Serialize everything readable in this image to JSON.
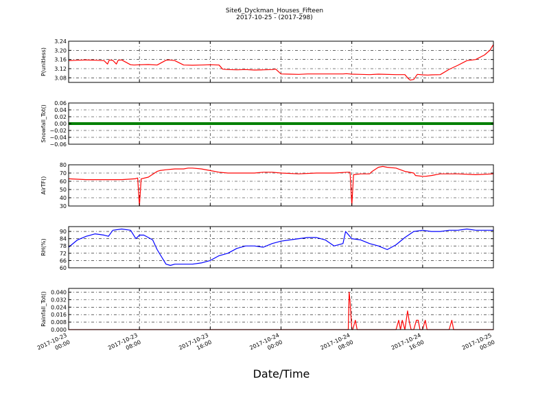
{
  "figure": {
    "title": "Site6_Dyckman_Houses_Fifteen",
    "subtitle": "2017-10-25 - (2017-298)",
    "xlabel": "Date/Time"
  },
  "chart_data": [
    {
      "type": "line",
      "ylabel": "P(unitless)",
      "ylim": [
        3.06,
        3.24
      ],
      "yticks": [
        3.08,
        3.12,
        3.16,
        3.2,
        3.24
      ],
      "ytick_labels": [
        "3.08",
        "3.12",
        "3.16",
        "3.20",
        "3.24"
      ],
      "xlim": [
        0,
        48
      ],
      "grid": true,
      "series": [
        {
          "color": "#ff0000",
          "x": [
            0,
            1,
            2,
            3,
            4,
            4.4,
            4.6,
            5,
            5.4,
            5.6,
            6,
            7,
            7.4,
            8,
            9,
            10,
            11,
            11.4,
            12,
            13,
            14,
            15,
            16,
            17,
            17.4,
            18,
            19,
            20,
            21,
            22,
            23,
            23.4,
            24,
            25,
            26,
            27,
            31,
            31.4,
            32,
            33,
            34,
            35,
            37,
            38,
            38.4,
            38.6,
            39,
            39.4,
            40,
            40.6,
            41,
            42,
            43,
            44,
            45,
            45.4,
            46,
            47,
            47.6,
            48
          ],
          "y": [
            3.155,
            3.157,
            3.158,
            3.157,
            3.155,
            3.14,
            3.158,
            3.156,
            3.14,
            3.157,
            3.158,
            3.137,
            3.136,
            3.137,
            3.138,
            3.136,
            3.157,
            3.158,
            3.155,
            3.136,
            3.135,
            3.136,
            3.137,
            3.136,
            3.118,
            3.116,
            3.115,
            3.116,
            3.114,
            3.115,
            3.116,
            3.118,
            3.097,
            3.096,
            3.095,
            3.097,
            3.097,
            3.098,
            3.096,
            3.095,
            3.094,
            3.096,
            3.094,
            3.094,
            3.076,
            3.07,
            3.073,
            3.095,
            3.093,
            3.092,
            3.093,
            3.094,
            3.117,
            3.135,
            3.155,
            3.157,
            3.16,
            3.18,
            3.2,
            3.225
          ]
        }
      ]
    },
    {
      "type": "line",
      "ylabel": "Snowfall_Tot()",
      "ylim": [
        -0.06,
        0.06
      ],
      "yticks": [
        -0.06,
        -0.04,
        -0.02,
        0.0,
        0.02,
        0.04,
        0.06
      ],
      "ytick_labels": [
        "−0.06",
        "−0.04",
        "−0.02",
        "0.00",
        "0.02",
        "0.04",
        "0.06"
      ],
      "xlim": [
        0,
        48
      ],
      "grid": true,
      "series": [
        {
          "color": "#008000",
          "line_width": 4,
          "x": [
            0,
            48
          ],
          "y": [
            0,
            0
          ]
        }
      ]
    },
    {
      "type": "line",
      "ylabel": "AirTF()",
      "ylim": [
        30,
        80
      ],
      "yticks": [
        30,
        40,
        50,
        60,
        70,
        80
      ],
      "ytick_labels": [
        "30",
        "40",
        "50",
        "60",
        "70",
        "80"
      ],
      "xlim": [
        0,
        48
      ],
      "grid": true,
      "series": [
        {
          "color": "#ff0000",
          "x": [
            0,
            2,
            4,
            6,
            7.5,
            7.8,
            8,
            8.2,
            9,
            10,
            10.3,
            11,
            12,
            13,
            13.5,
            14,
            15,
            16,
            17,
            18,
            19,
            20,
            21,
            22,
            23,
            24,
            26,
            28,
            29,
            30,
            31.5,
            31.8,
            32,
            32.2,
            33,
            34,
            34.3,
            35,
            35.5,
            36,
            37,
            38,
            39,
            39.2,
            40,
            40.3,
            41,
            42,
            44,
            46,
            48
          ],
          "y": [
            63,
            62,
            62,
            62,
            63,
            64,
            30,
            63,
            65,
            72,
            73,
            74,
            75,
            75,
            76,
            76,
            75,
            73,
            71,
            70,
            70,
            70,
            70,
            71,
            71,
            70,
            69,
            70,
            70,
            70,
            71,
            71,
            31,
            68,
            69,
            69,
            72,
            77,
            78,
            77,
            76,
            72,
            70,
            67,
            66,
            66,
            67,
            69,
            69,
            68,
            69
          ]
        }
      ]
    },
    {
      "type": "line",
      "ylabel": "RH(%)",
      "ylim": [
        60,
        94
      ],
      "yticks": [
        60,
        66,
        72,
        78,
        84,
        90
      ],
      "ytick_labels": [
        "60",
        "66",
        "72",
        "78",
        "84",
        "90"
      ],
      "xlim": [
        0,
        48
      ],
      "grid": true,
      "series": [
        {
          "color": "#0000ff",
          "x": [
            0,
            1,
            2,
            3,
            4,
            4.5,
            5,
            6,
            7,
            7.6,
            8,
            8.5,
            9,
            9.5,
            10,
            11,
            11.5,
            12,
            13,
            14,
            15,
            16,
            17,
            18,
            19,
            20,
            21,
            22,
            23,
            24,
            25,
            26,
            27,
            28,
            29,
            30,
            31,
            31.3,
            32,
            33,
            34,
            35,
            36,
            37,
            38,
            39,
            40,
            41,
            42,
            43,
            44,
            45,
            46,
            48
          ],
          "y": [
            77,
            83,
            86,
            88,
            87,
            86,
            91,
            92,
            91,
            84,
            87,
            87,
            85,
            83,
            75,
            63,
            62,
            63,
            63,
            63,
            64,
            66,
            70,
            72,
            76,
            78,
            78,
            77,
            80,
            82,
            83,
            84,
            85,
            85,
            83,
            78,
            80,
            90,
            84,
            83,
            80,
            78,
            75,
            79,
            85,
            90,
            91,
            90,
            90,
            91,
            91,
            92,
            91,
            91
          ]
        }
      ]
    },
    {
      "type": "line",
      "ylabel": "Rainfall_Tot()",
      "ylim": [
        0,
        0.044
      ],
      "yticks": [
        0,
        0.008,
        0.016,
        0.024,
        0.032,
        0.04
      ],
      "ytick_labels": [
        "0.000",
        "0.008",
        "0.016",
        "0.024",
        "0.032",
        "0.040"
      ],
      "xlim": [
        0,
        48
      ],
      "grid": true,
      "series": [
        {
          "color": "#ff0000",
          "x": [
            0,
            31.6,
            31.7,
            31.8,
            32,
            32.1,
            32.4,
            32.6,
            32.8,
            37,
            37.3,
            37.5,
            37.7,
            38,
            38.3,
            38.5,
            38.7,
            39,
            39.3,
            39.5,
            39.7,
            40,
            40.3,
            40.5,
            40.7,
            43,
            43.3,
            43.5,
            48
          ],
          "y": [
            0,
            0,
            0.04,
            0.03,
            0,
            0,
            0.01,
            0,
            0,
            0,
            0.01,
            0,
            0.01,
            0,
            0.02,
            0.008,
            0,
            0,
            0.01,
            0.01,
            0,
            0,
            0.01,
            0,
            0,
            0,
            0.01,
            0,
            0
          ]
        }
      ]
    }
  ],
  "x_axis": {
    "ticks": [
      0,
      8,
      16,
      24,
      32,
      40,
      48
    ],
    "tick_labels": [
      [
        "2017-10-23",
        "00:00"
      ],
      [
        "2017-10-23",
        "08:00"
      ],
      [
        "2017-10-23",
        "16:00"
      ],
      [
        "2017-10-24",
        "00:00"
      ],
      [
        "2017-10-24",
        "08:00"
      ],
      [
        "2017-10-24",
        "16:00"
      ],
      [
        "2017-10-25",
        "00:00"
      ]
    ]
  }
}
